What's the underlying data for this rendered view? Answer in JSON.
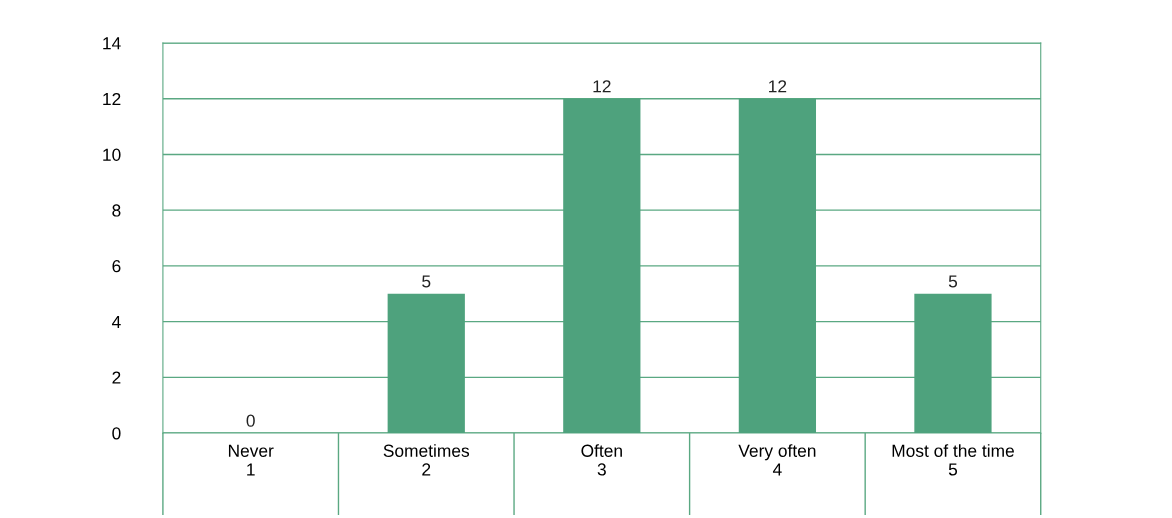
{
  "chart_data": {
    "type": "bar",
    "categories": [
      "Never\n1",
      "Sometimes\n2",
      "Often\n3",
      "Very often\n4",
      "Most of the time\n5"
    ],
    "values": [
      0,
      5,
      12,
      12,
      5
    ],
    "color": "#4ea27d",
    "ylim": [
      0,
      14
    ],
    "yticks": [
      0,
      2,
      4,
      6,
      8,
      10,
      12,
      14
    ],
    "grid": "y",
    "data_labels": true
  }
}
